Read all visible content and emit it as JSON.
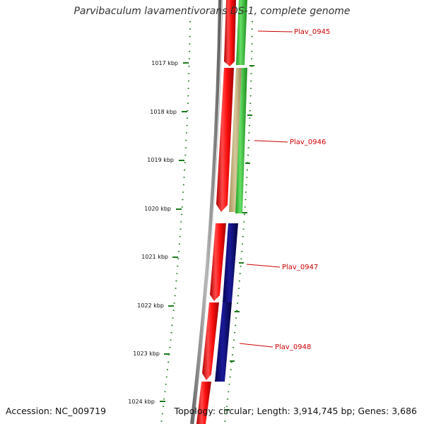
{
  "title": "Parvibaculum lavamentivorans DS-1, complete genome",
  "accession": "Accession: NC_009719",
  "summary": "Topology: circular; Length: 3,914,745 bp; Genes: 3,686",
  "ticks": [
    {
      "label": "1017 kbp"
    },
    {
      "label": "1018 kbp"
    },
    {
      "label": "1019 kbp"
    },
    {
      "label": "1020 kbp"
    },
    {
      "label": "1021 kbp"
    },
    {
      "label": "1022 kbp"
    },
    {
      "label": "1023 kbp"
    },
    {
      "label": "1024 kbp"
    }
  ],
  "genes": [
    {
      "name": "Plav_0945"
    },
    {
      "name": "Plav_0946"
    },
    {
      "name": "Plav_0947"
    },
    {
      "name": "Plav_0948"
    }
  ],
  "colors": {
    "backbone": "#8a8a8a",
    "cds_strand_track": "#ff1010",
    "gene_label": "#cc0000",
    "tick_marks": "#1b7a1b",
    "gene_green": "#33cc33",
    "gene_tan": "#c8b887",
    "gene_navy": "#0b0b7a"
  }
}
